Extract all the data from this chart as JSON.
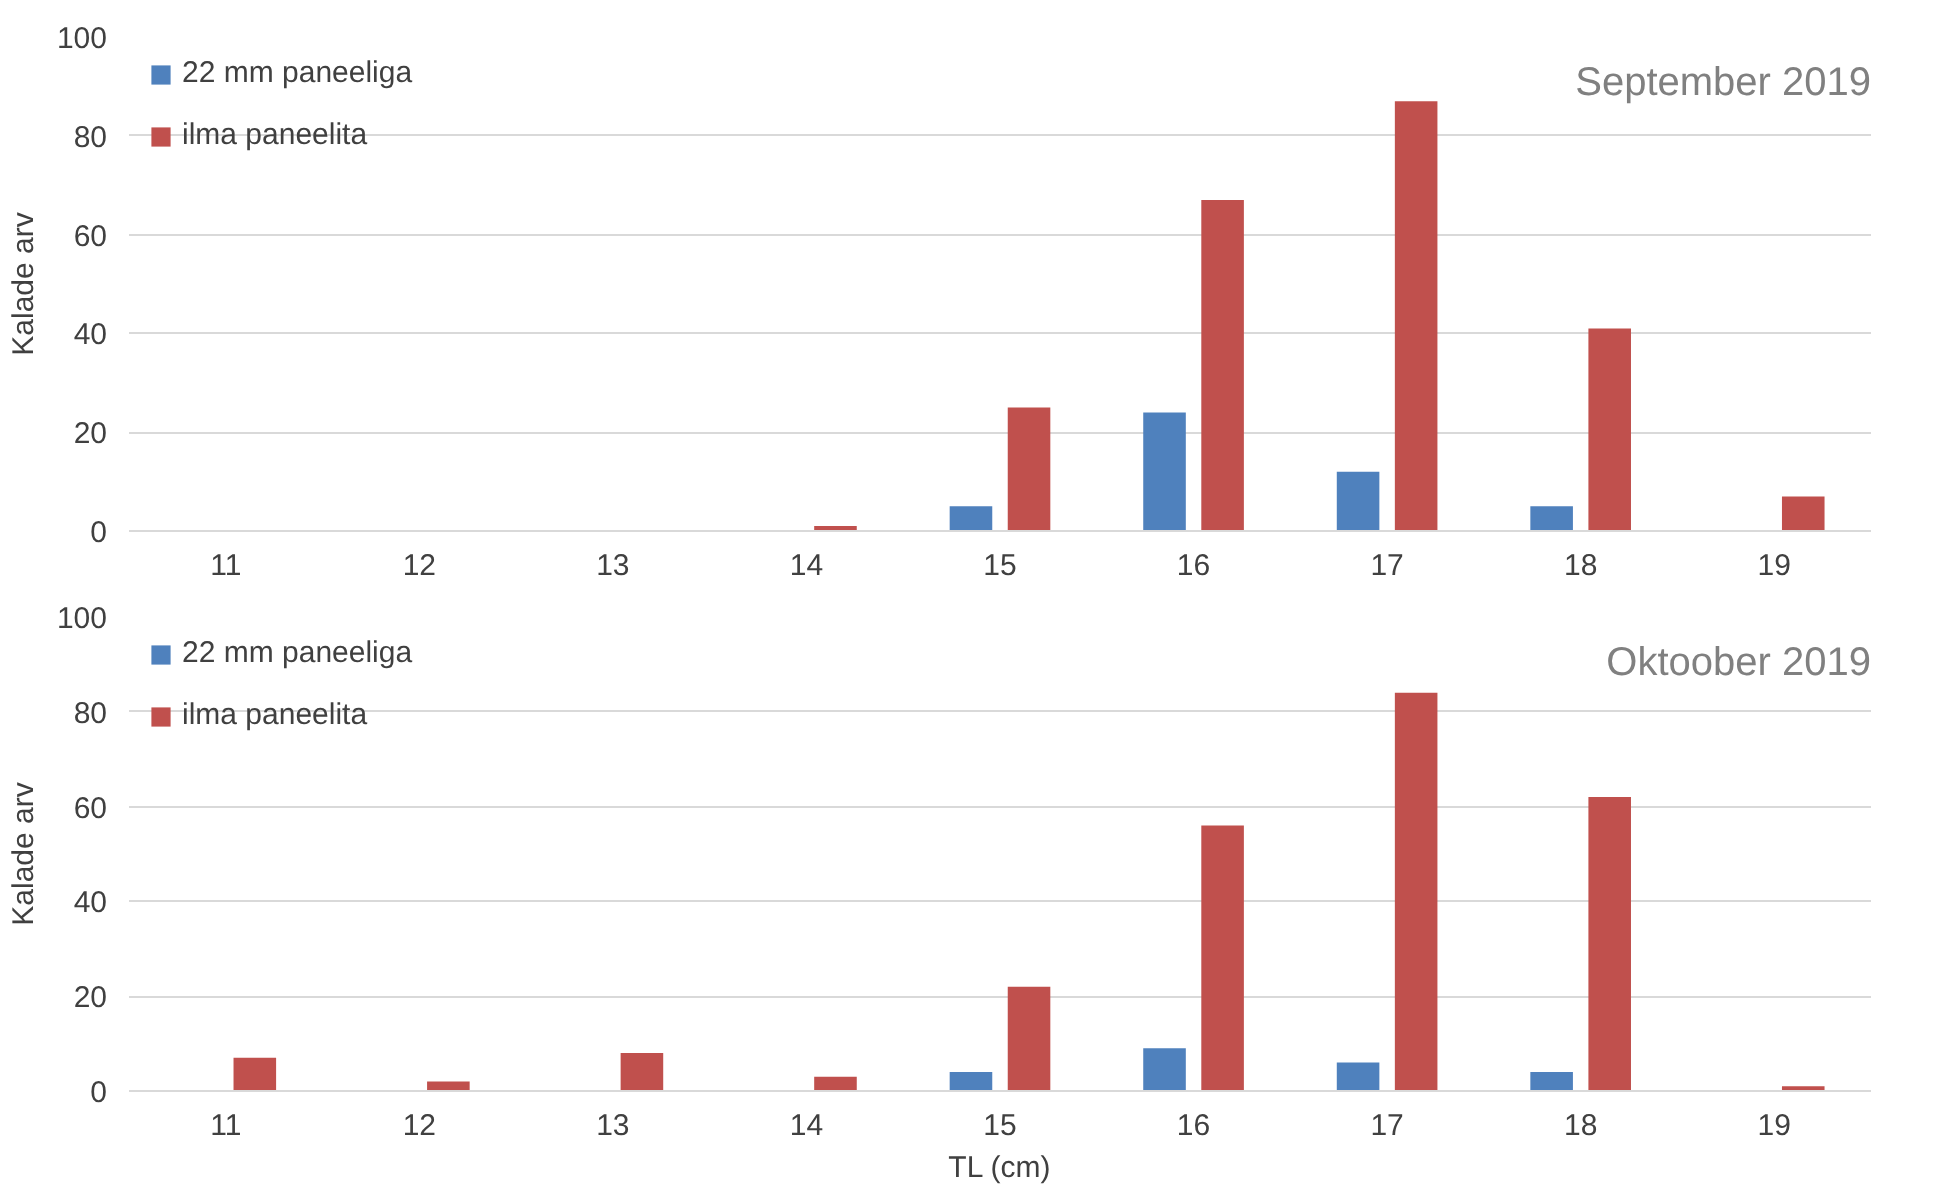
{
  "chart_data": [
    {
      "type": "bar",
      "title": "September 2019",
      "ylabel": "Kalade arv",
      "categories": [
        "11",
        "12",
        "13",
        "14",
        "15",
        "16",
        "17",
        "18",
        "19"
      ],
      "series": [
        {
          "name": "22 mm paneeliga",
          "color": "#4f81bd",
          "values": [
            0,
            0,
            0,
            0,
            5,
            24,
            12,
            5,
            0
          ]
        },
        {
          "name": "ilma paneelita",
          "color": "#c0504d",
          "values": [
            0,
            0,
            0,
            1,
            25,
            67,
            87,
            41,
            7
          ]
        }
      ],
      "ylim": [
        0,
        100
      ],
      "yticks": [
        0,
        20,
        40,
        60,
        80,
        100
      ],
      "grid": "y",
      "legend": "top left"
    },
    {
      "type": "bar",
      "title": "Oktoober 2019",
      "ylabel": "Kalade arv",
      "xlabel": "TL (cm)",
      "categories": [
        "11",
        "12",
        "13",
        "14",
        "15",
        "16",
        "17",
        "18",
        "19"
      ],
      "series": [
        {
          "name": "22 mm paneeliga",
          "color": "#4f81bd",
          "values": [
            0,
            0,
            0,
            0,
            4,
            9,
            6,
            4,
            0
          ]
        },
        {
          "name": "ilma paneelita",
          "color": "#c0504d",
          "values": [
            7,
            2,
            8,
            3,
            22,
            56,
            84,
            62,
            1
          ]
        }
      ],
      "ylim": [
        0,
        100
      ],
      "yticks": [
        0,
        20,
        40,
        60,
        80,
        100
      ],
      "grid": "y",
      "legend": "top left"
    }
  ]
}
